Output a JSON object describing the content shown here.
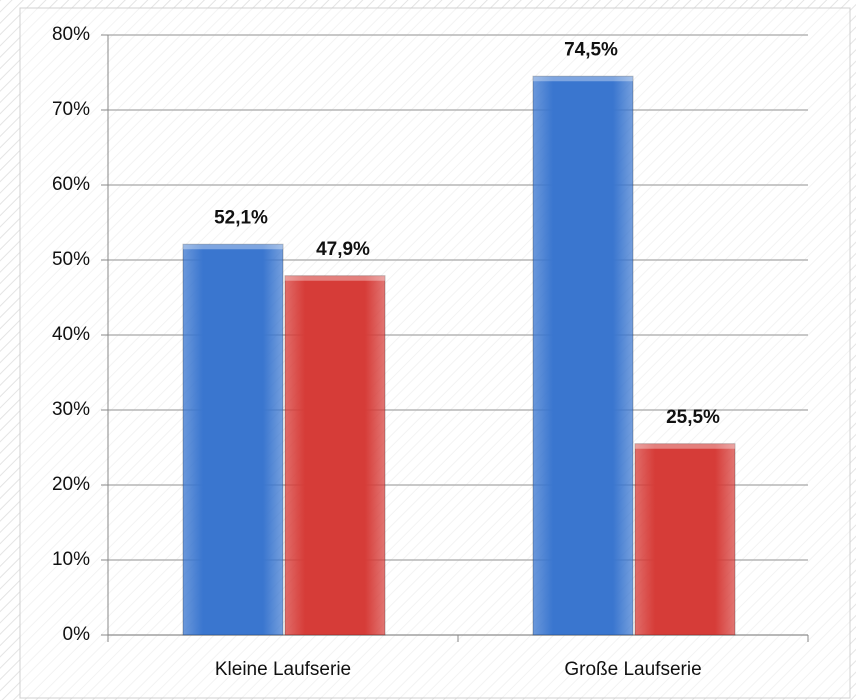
{
  "chart_data": {
    "type": "bar",
    "categories": [
      "Kleine Laufserie",
      "Große Laufserie"
    ],
    "series": [
      {
        "color": "#3a76cf",
        "values": [
          52.1,
          74.5
        ],
        "value_labels": [
          "52,1%",
          "74,5%"
        ]
      },
      {
        "color": "#d63c38",
        "values": [
          47.9,
          25.5
        ],
        "value_labels": [
          "47,9%",
          "25,5%"
        ]
      }
    ],
    "ylim": [
      0,
      80
    ],
    "yticks": [
      {
        "value": 0,
        "label": "0%"
      },
      {
        "value": 10,
        "label": "10%"
      },
      {
        "value": 20,
        "label": "20%"
      },
      {
        "value": 30,
        "label": "30%"
      },
      {
        "value": 40,
        "label": "40%"
      },
      {
        "value": 50,
        "label": "50%"
      },
      {
        "value": 60,
        "label": "60%"
      },
      {
        "value": 70,
        "label": "70%"
      },
      {
        "value": 80,
        "label": "80%"
      }
    ],
    "grid": true
  }
}
